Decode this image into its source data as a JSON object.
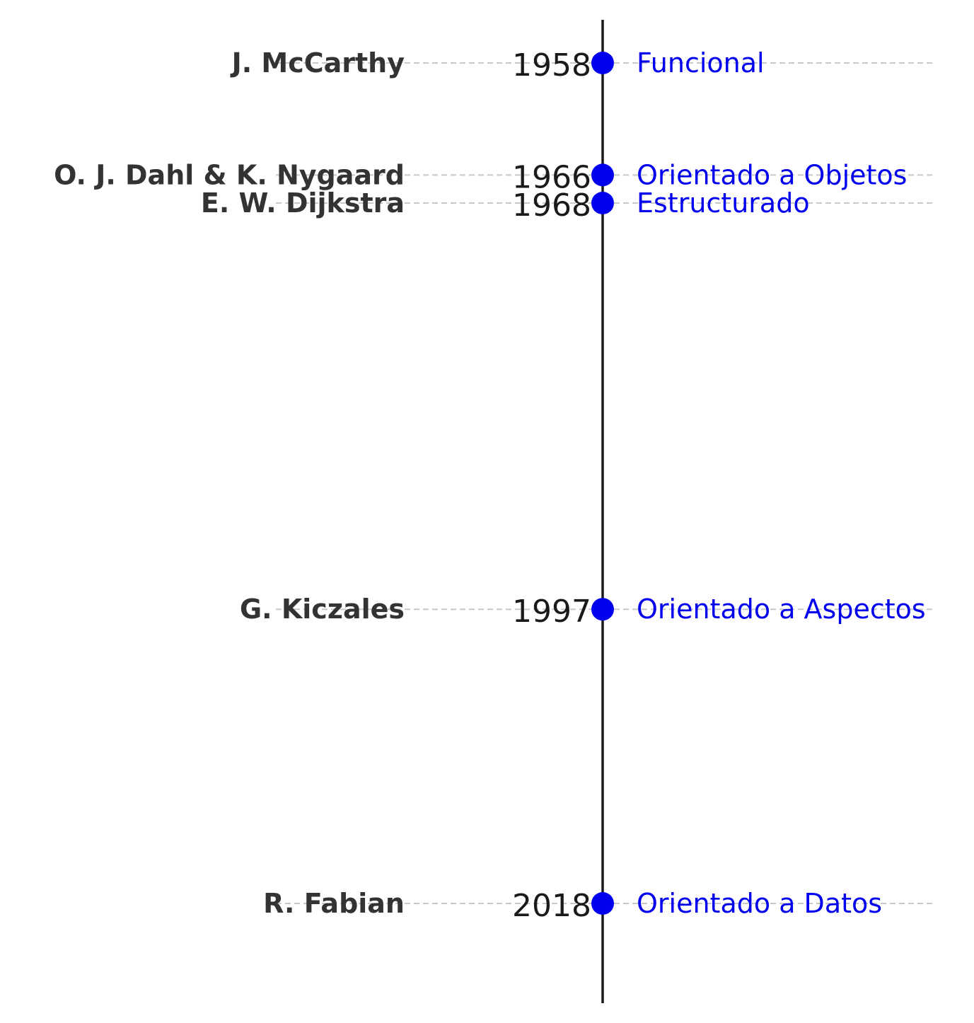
{
  "chart_data": {
    "type": "timeline",
    "title": "",
    "xlabel": "",
    "ylabel": "",
    "ylim": [
      1955,
      2023.5
    ],
    "y_inverted": true,
    "grid": false,
    "events": [
      {
        "year": 1958,
        "author": "J. McCarthy",
        "paradigm": "Funcional"
      },
      {
        "year": 1966,
        "author": "O. J. Dahl & K. Nygaard",
        "paradigm": "Orientado a Objetos"
      },
      {
        "year": 1968,
        "author": "E. W. Dijkstra",
        "paradigm": "Estructurado"
      },
      {
        "year": 1997,
        "author": "G. Kiczales",
        "paradigm": "Orientado a Aspectos"
      },
      {
        "year": 2018,
        "author": "R. Fabian",
        "paradigm": "Orientado a Datos"
      }
    ]
  },
  "colors": {
    "axis": "#1a1a1a",
    "marker": "#0000ee",
    "paradigm_text": "#0000ee",
    "author_text": "#333333",
    "year_text": "#1a1a1a",
    "guide": "#c8c8c8"
  }
}
